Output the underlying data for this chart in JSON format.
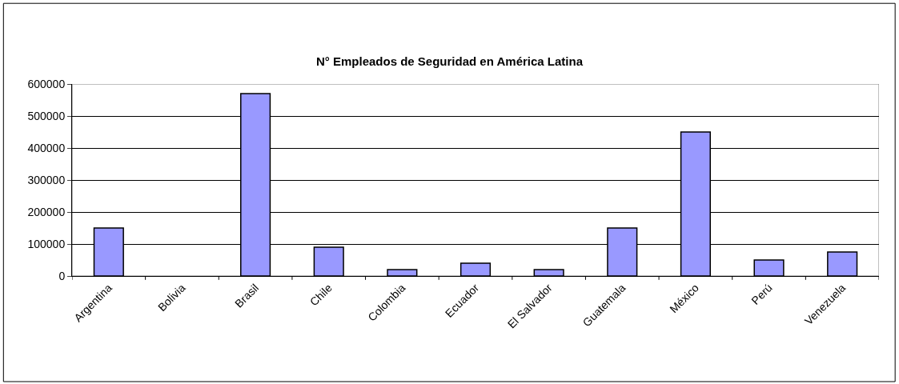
{
  "chart_data": {
    "type": "bar",
    "title": "N° Empleados de Seguridad en América Latina",
    "categories": [
      "Argentina",
      "Bolivia",
      "Brasil",
      "Chile",
      "Colombia",
      "Ecuador",
      "El Salvador",
      "Guatemala",
      "México",
      "Perú",
      "Venezuela"
    ],
    "values": [
      150000,
      null,
      570000,
      90000,
      20000,
      40000,
      20000,
      150000,
      450000,
      50000,
      75000
    ],
    "color": "#9999ff",
    "ylim": [
      0,
      600000
    ],
    "yticks": [
      0,
      100000,
      200000,
      300000,
      400000,
      500000,
      600000
    ],
    "grid": "y",
    "legend": false
  }
}
